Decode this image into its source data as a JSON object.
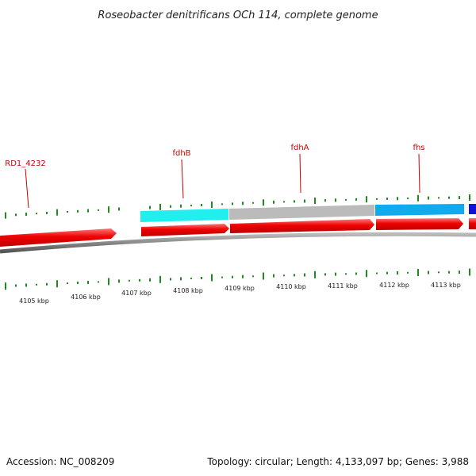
{
  "title": "Roseobacter denitrificans OCh 114, complete genome",
  "footer": {
    "accession": "Accession: NC_008209",
    "summary": "Topology: circular; Length: 4,133,097 bp; Genes: 3,988"
  },
  "gene_labels": [
    {
      "id": "rd1-4232",
      "text": "RD1_4232"
    },
    {
      "id": "fdhb",
      "text": "fdhB"
    },
    {
      "id": "fdha",
      "text": "fdhA"
    },
    {
      "id": "fhs",
      "text": "fhs"
    }
  ],
  "scale_labels": [
    "4105 kbp",
    "4106 kbp",
    "4107 kbp",
    "4108 kbp",
    "4109 kbp",
    "4110 kbp",
    "4111 kbp",
    "4112 kbp",
    "4113 kbp"
  ],
  "colors": {
    "gene_forward": "#ee0000",
    "cog_cyan": "#22eeee",
    "cog_gray": "#bbbbbb",
    "cog_sky": "#11aaee",
    "cog_blue": "#1111dd",
    "backbone": "#888888",
    "gc_ticks": "#228822",
    "label": "#cc0000"
  }
}
